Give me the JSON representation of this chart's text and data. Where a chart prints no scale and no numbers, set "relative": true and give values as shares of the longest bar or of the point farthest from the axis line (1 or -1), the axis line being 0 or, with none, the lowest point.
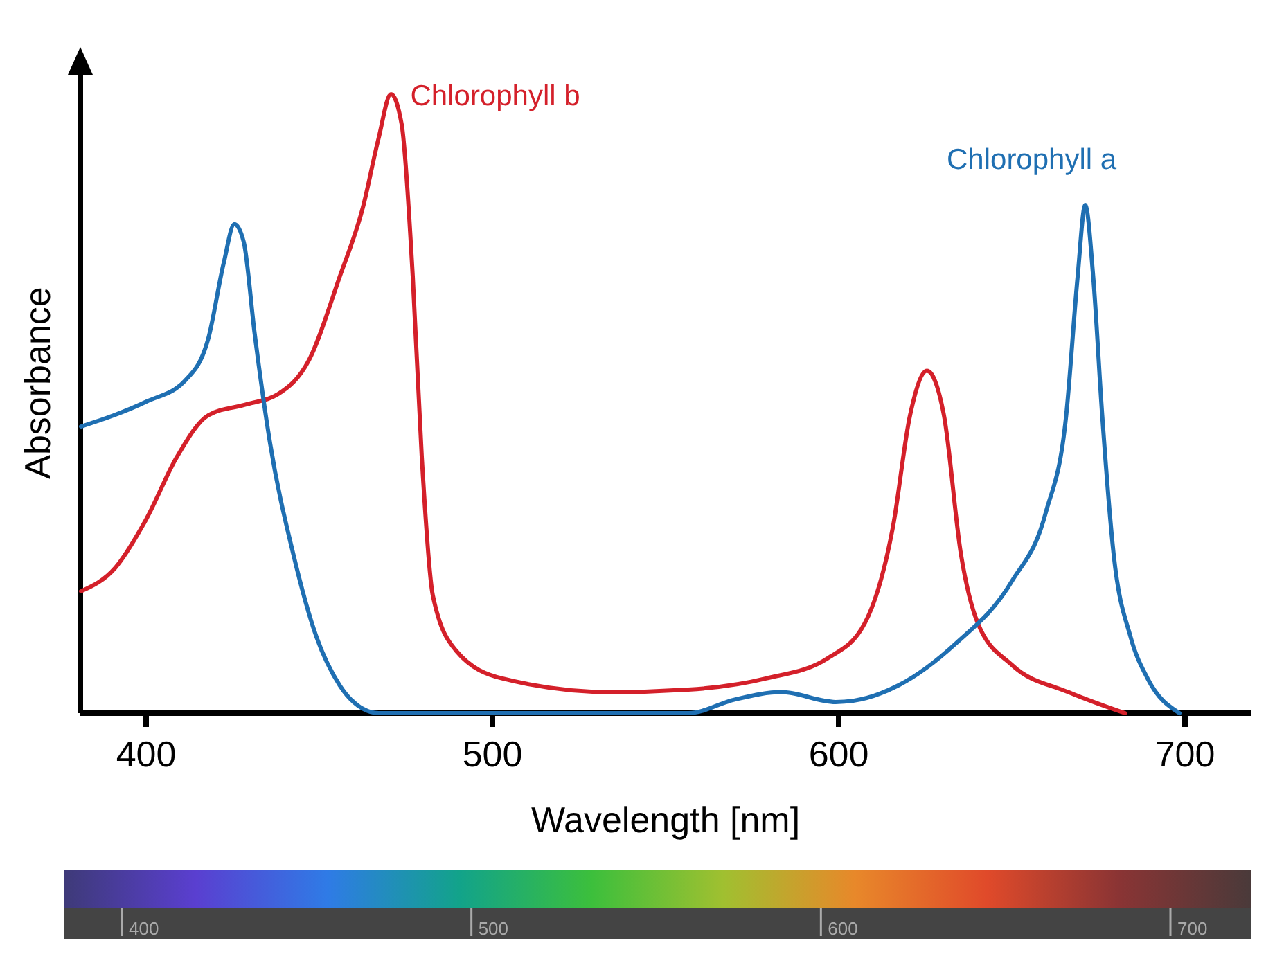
{
  "chart_data": {
    "type": "line",
    "relative": true,
    "xlabel": "Wavelength [nm]",
    "ylabel": "Absorbance",
    "xlim": [
      381,
      719
    ],
    "xticks": [
      400,
      500,
      600,
      700
    ],
    "annotations": [
      "400",
      "500",
      "600",
      "700"
    ],
    "series": [
      {
        "name": "Chlorophyll b",
        "color": "#d4202a",
        "x": [
          381.2,
          391.1,
          400,
          408.9,
          417.9,
          429.1,
          438,
          447,
          455.9,
          462.6,
          467.1,
          470.7,
          473.8,
          477,
          479.6,
          482.8,
          489.5,
          502.9,
          534.2,
          556.6,
          579,
          596.9,
          607.5,
          615.7,
          620.6,
          625.5,
          630.4,
          635.3,
          640.2,
          650,
          666.3,
          682.7
        ],
        "values": [
          0.197,
          0.235,
          0.313,
          0.414,
          0.481,
          0.499,
          0.515,
          0.57,
          0.705,
          0.817,
          0.928,
          1,
          0.951,
          0.705,
          0.414,
          0.19,
          0.101,
          0.056,
          0.034,
          0.038,
          0.056,
          0.089,
          0.145,
          0.302,
          0.481,
          0.553,
          0.481,
          0.257,
          0.145,
          0.078,
          0.034,
          0
        ]
      },
      {
        "name": "Chlorophyll a",
        "color": "#1f6fb2",
        "x": [
          381.2,
          400,
          411.2,
          417.9,
          422.4,
          425.5,
          428.2,
          431.3,
          435.8,
          442.5,
          449.2,
          455.9,
          462.6,
          467.1,
          556.6,
          570,
          583.4,
          599.1,
          604.2,
          617.3,
          633.7,
          650,
          659.8,
          665.7,
          669,
          671.2,
          673.5,
          676.1,
          679.4,
          684.3,
          689.2,
          698.4
        ],
        "values": [
          0.463,
          0.503,
          0.537,
          0.604,
          0.727,
          0.79,
          0.761,
          0.615,
          0.436,
          0.257,
          0.123,
          0.045,
          0.007,
          0,
          0,
          0.022,
          0.034,
          0.018,
          0.02,
          0.045,
          0.112,
          0.213,
          0.324,
          0.481,
          0.705,
          0.821,
          0.705,
          0.481,
          0.257,
          0.123,
          0.056,
          0
        ]
      }
    ]
  }
}
